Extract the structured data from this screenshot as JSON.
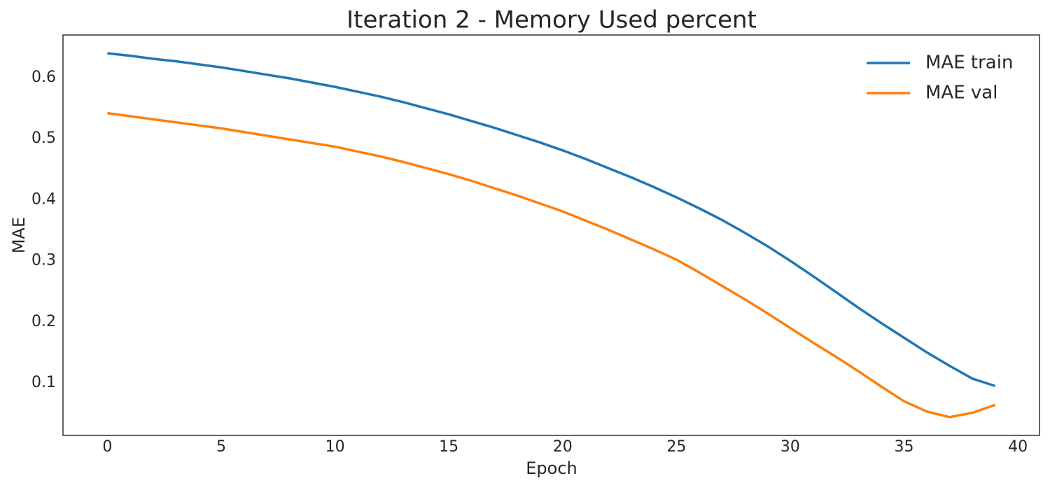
{
  "chart_data": {
    "type": "line",
    "title": "Iteration 2 - Memory Used percent",
    "xlabel": "Epoch",
    "ylabel": "MAE",
    "x": [
      0,
      1,
      2,
      3,
      4,
      5,
      6,
      7,
      8,
      9,
      10,
      11,
      12,
      13,
      14,
      15,
      16,
      17,
      18,
      19,
      20,
      21,
      22,
      23,
      24,
      25,
      26,
      27,
      28,
      29,
      30,
      31,
      32,
      33,
      34,
      35,
      36,
      37,
      38,
      39
    ],
    "series": [
      {
        "name": "MAE train",
        "color": "#1f77b4",
        "values": [
          0.64,
          0.636,
          0.631,
          0.627,
          0.622,
          0.617,
          0.611,
          0.605,
          0.599,
          0.592,
          0.585,
          0.577,
          0.569,
          0.56,
          0.55,
          0.54,
          0.529,
          0.518,
          0.506,
          0.494,
          0.481,
          0.467,
          0.452,
          0.437,
          0.421,
          0.404,
          0.386,
          0.367,
          0.346,
          0.324,
          0.3,
          0.275,
          0.249,
          0.223,
          0.198,
          0.174,
          0.15,
          0.128,
          0.107,
          0.095
        ]
      },
      {
        "name": "MAE val",
        "color": "#ff7f0e",
        "values": [
          0.542,
          0.537,
          0.532,
          0.527,
          0.522,
          0.517,
          0.511,
          0.505,
          0.499,
          0.493,
          0.487,
          0.479,
          0.471,
          0.462,
          0.452,
          0.442,
          0.431,
          0.419,
          0.407,
          0.394,
          0.381,
          0.366,
          0.351,
          0.335,
          0.319,
          0.302,
          0.281,
          0.259,
          0.237,
          0.214,
          0.19,
          0.166,
          0.143,
          0.119,
          0.094,
          0.07,
          0.053,
          0.044,
          0.051,
          0.064
        ]
      }
    ],
    "xlim": [
      -1.95,
      40.95
    ],
    "xticks": [
      0,
      5,
      10,
      15,
      20,
      25,
      30,
      35,
      40
    ],
    "ylim": [
      0.014,
      0.67
    ],
    "yticks": [
      0.1,
      0.2,
      0.3,
      0.4,
      0.5,
      0.6
    ],
    "grid": false,
    "legend": "upper right"
  }
}
